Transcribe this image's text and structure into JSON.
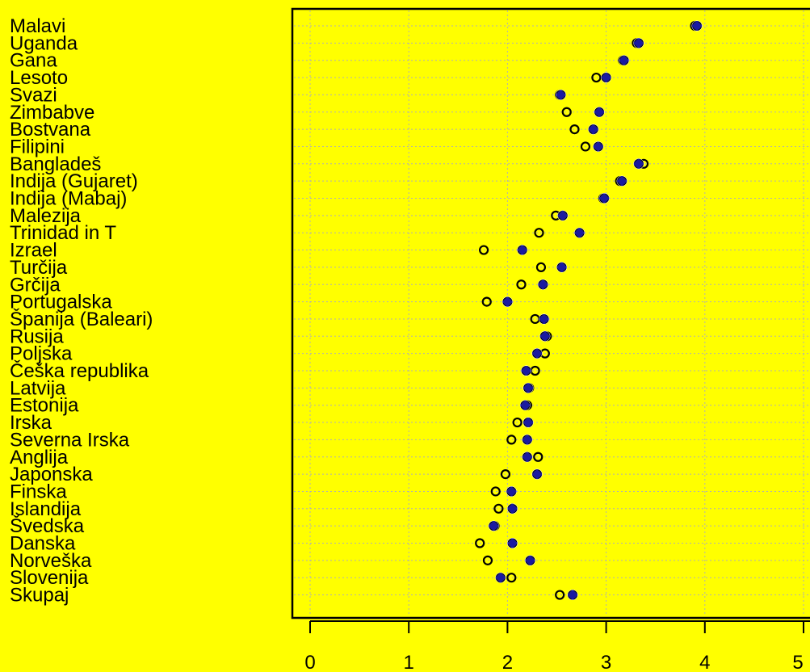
{
  "colors": {
    "background": "#ffff00",
    "marker_fill": "#1a1aa0",
    "marker_ring": "#ffffff",
    "grid": "#b0b0b0"
  },
  "chart_data": {
    "type": "scatter",
    "orientation": "horizontal-dotplot",
    "grid": true,
    "xlim": [
      0,
      5
    ],
    "xticks": [
      0,
      1,
      2,
      3,
      4,
      5
    ],
    "categories": [
      "Malavi",
      "Uganda",
      "Gana",
      "Lesoto",
      "Svazi",
      "Zimbabve",
      "Bostvana",
      "Filipini",
      "Bangladeš",
      "Indija (Gujaret)",
      "Indija (Mabaj)",
      "Malezija",
      "Trinidad in T",
      "Izrael",
      "Turčija",
      "Grčija",
      "Portugalska",
      "Španija (Baleari)",
      "Rusija",
      "Poljska",
      "Češka republika",
      "Latvija",
      "Estonija",
      "Irska",
      "Severna Irska",
      "Anglija",
      "Japonska",
      "Finska",
      "Islandija",
      "Švedska",
      "Danska",
      "Norveška",
      "Slovenija",
      "Skupaj"
    ],
    "series": [
      {
        "marker": "filled-circle-cross",
        "values": [
          3.92,
          3.33,
          3.18,
          3.0,
          2.54,
          2.93,
          2.87,
          2.92,
          3.33,
          3.16,
          2.98,
          2.56,
          2.73,
          2.15,
          2.55,
          2.36,
          2.0,
          2.37,
          2.38,
          2.3,
          2.19,
          2.21,
          2.18,
          2.21,
          2.2,
          2.2,
          2.3,
          2.04,
          2.05,
          1.86,
          2.05,
          2.23,
          1.93,
          2.66
        ]
      },
      {
        "marker": "open-circle",
        "values": [
          3.9,
          3.31,
          3.17,
          2.9,
          2.53,
          2.6,
          2.68,
          2.79,
          3.38,
          3.14,
          2.97,
          2.49,
          2.32,
          1.76,
          2.34,
          2.14,
          1.79,
          2.28,
          2.4,
          2.38,
          2.28,
          2.22,
          2.2,
          2.1,
          2.04,
          2.31,
          1.98,
          1.88,
          1.91,
          1.87,
          1.72,
          1.8,
          2.04,
          2.53
        ]
      }
    ]
  }
}
